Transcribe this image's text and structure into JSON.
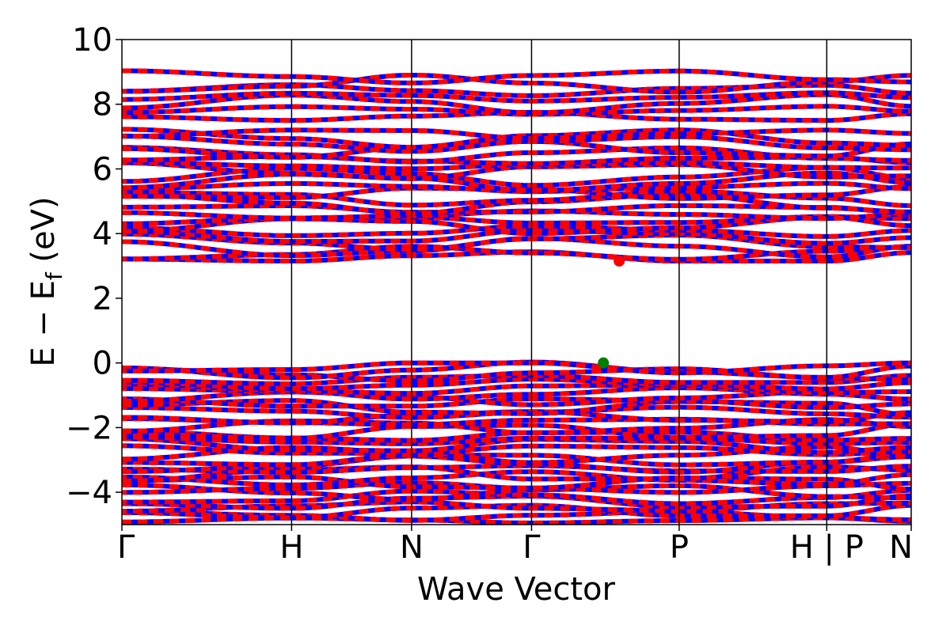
{
  "chart_data": {
    "type": "line",
    "xlabel": "Wave Vector",
    "ylabel": {
      "main": "E − E",
      "sub": "f",
      "unit": " (eV)"
    },
    "ylim": [
      -5,
      10
    ],
    "yticks": [
      -4,
      -2,
      0,
      2,
      4,
      6,
      8,
      10
    ],
    "ytick_labels": [
      "−4",
      "−2",
      "0",
      "2",
      "4",
      "6",
      "8",
      "10"
    ],
    "kpath_ticks": [
      {
        "pos": 0.0,
        "label": "Γ"
      },
      {
        "pos": 0.215,
        "label": "H"
      },
      {
        "pos": 0.367,
        "label": "N"
      },
      {
        "pos": 0.519,
        "label": "Γ"
      },
      {
        "pos": 0.706,
        "label": "P"
      },
      {
        "pos": 0.893,
        "label": "H | P"
      },
      {
        "pos": 1.0,
        "label": "N"
      }
    ],
    "high_symmetry_lines_at": [
      0.215,
      0.367,
      0.519,
      0.706,
      0.893
    ],
    "series": [
      {
        "spin": "up",
        "color": "#0000ff"
      },
      {
        "spin": "down",
        "color": "#ff0000"
      }
    ],
    "band_groups": {
      "valence": {
        "min": -4.95,
        "max": 0.0
      },
      "conduction_low": {
        "min": 3.15,
        "max": 7.2
      },
      "conduction_high": {
        "min": 7.5,
        "max": 8.95
      }
    },
    "markers": [
      {
        "name": "VBM",
        "x": 0.61,
        "y": 0.0,
        "color": "#008000"
      },
      {
        "name": "CBM",
        "x": 0.63,
        "y": 3.15,
        "color": "#ff0000"
      }
    ],
    "grid": false,
    "legend": "none"
  }
}
